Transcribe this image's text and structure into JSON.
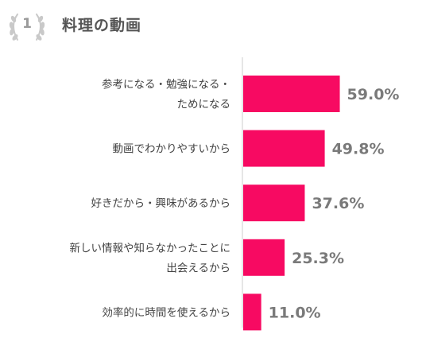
{
  "header": {
    "rank": "1",
    "title": "料理の動画"
  },
  "colors": {
    "bar": "#f70a62",
    "label_text": "#444444",
    "value_text": "#7a7a7a",
    "laurel": "#c9c9c9",
    "axis": "#cccccc"
  },
  "chart_data": {
    "type": "bar",
    "orientation": "horizontal",
    "unit": "%",
    "categories": [
      [
        "参考になる・勉強になる・",
        "ためになる"
      ],
      [
        "動画でわかりやすいから"
      ],
      [
        "好きだから・興味があるから"
      ],
      [
        "新しい情報や知らなかったことに",
        "出会えるから"
      ],
      [
        "効率的に時間を使えるから"
      ]
    ],
    "values": [
      59.0,
      49.8,
      37.6,
      25.3,
      11.0
    ],
    "value_labels": [
      "59.0%",
      "49.8%",
      "37.6%",
      "25.3%",
      "11.0%"
    ],
    "xlim": [
      0,
      100
    ],
    "grid": false,
    "legend": "none"
  }
}
